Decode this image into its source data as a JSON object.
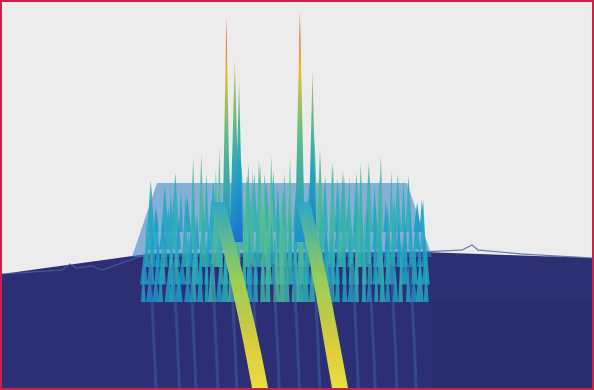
{
  "chart_data": {
    "type": "surface",
    "title": "",
    "xlabel": "",
    "ylabel": "",
    "zlabel": "",
    "grid": false,
    "colormap": "parula",
    "background": "#ececec",
    "frame_color": "#c8224a",
    "floor_color": "#2c2f73",
    "plateau_level": 0.42,
    "peaks": [
      {
        "position": 0.14,
        "amplitude": 0.98
      },
      {
        "position": 0.18,
        "amplitude": 0.79
      },
      {
        "position": 0.2,
        "amplitude": 0.7
      },
      {
        "position": 0.49,
        "amplitude": 1.0
      },
      {
        "position": 0.55,
        "amplitude": 0.75
      }
    ]
  }
}
